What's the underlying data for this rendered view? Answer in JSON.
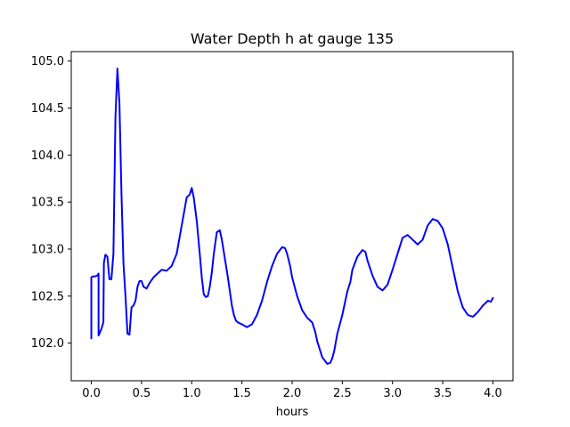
{
  "chart_data": {
    "type": "line",
    "title": "Water Depth h at gauge 135",
    "xlabel": "hours",
    "ylabel": "",
    "xlim": [
      -0.2,
      4.2
    ],
    "ylim": [
      101.6,
      105.1
    ],
    "grid": false,
    "legend": "none",
    "x_ticks": [
      {
        "value": 0.0,
        "label": "0.0"
      },
      {
        "value": 0.5,
        "label": "0.5"
      },
      {
        "value": 1.0,
        "label": "1.0"
      },
      {
        "value": 1.5,
        "label": "1.5"
      },
      {
        "value": 2.0,
        "label": "2.0"
      },
      {
        "value": 2.5,
        "label": "2.5"
      },
      {
        "value": 3.0,
        "label": "3.0"
      },
      {
        "value": 3.5,
        "label": "3.5"
      },
      {
        "value": 4.0,
        "label": "4.0"
      }
    ],
    "y_ticks": [
      {
        "value": 102.0,
        "label": "102.0"
      },
      {
        "value": 102.5,
        "label": "102.5"
      },
      {
        "value": 103.0,
        "label": "103.0"
      },
      {
        "value": 103.5,
        "label": "103.5"
      },
      {
        "value": 104.0,
        "label": "104.0"
      },
      {
        "value": 104.5,
        "label": "104.5"
      },
      {
        "value": 105.0,
        "label": "105.0"
      }
    ],
    "series": [
      {
        "color": "#0000ff",
        "x": [
          0.0,
          0.0,
          0.02,
          0.04,
          0.06,
          0.072,
          0.072,
          0.1,
          0.12,
          0.125,
          0.14,
          0.16,
          0.18,
          0.2,
          0.22,
          0.24,
          0.26,
          0.28,
          0.3,
          0.32,
          0.34,
          0.36,
          0.38,
          0.4,
          0.42,
          0.44,
          0.46,
          0.48,
          0.5,
          0.52,
          0.55,
          0.58,
          0.62,
          0.65,
          0.68,
          0.7,
          0.75,
          0.8,
          0.85,
          0.9,
          0.95,
          0.98,
          1.0,
          1.02,
          1.05,
          1.08,
          1.1,
          1.12,
          1.14,
          1.16,
          1.18,
          1.2,
          1.22,
          1.25,
          1.28,
          1.3,
          1.33,
          1.36,
          1.38,
          1.4,
          1.42,
          1.44,
          1.46,
          1.5,
          1.55,
          1.6,
          1.65,
          1.7,
          1.75,
          1.8,
          1.85,
          1.9,
          1.93,
          1.95,
          1.98,
          2.0,
          2.05,
          2.1,
          2.15,
          2.2,
          2.23,
          2.25,
          2.3,
          2.35,
          2.38,
          2.4,
          2.42,
          2.45,
          2.5,
          2.55,
          2.58,
          2.6,
          2.65,
          2.7,
          2.73,
          2.75,
          2.8,
          2.85,
          2.9,
          2.95,
          3.0,
          3.05,
          3.1,
          3.15,
          3.2,
          3.25,
          3.3,
          3.35,
          3.4,
          3.45,
          3.5,
          3.55,
          3.6,
          3.65,
          3.7,
          3.75,
          3.8,
          3.85,
          3.9,
          3.93,
          3.95,
          3.98,
          4.0
        ],
        "y": [
          102.05,
          102.7,
          102.71,
          102.71,
          102.72,
          102.74,
          102.08,
          102.15,
          102.22,
          102.85,
          102.94,
          102.92,
          102.68,
          102.68,
          102.95,
          104.4,
          104.92,
          104.55,
          103.6,
          102.85,
          102.5,
          102.1,
          102.09,
          102.38,
          102.4,
          102.45,
          102.6,
          102.66,
          102.66,
          102.6,
          102.58,
          102.64,
          102.7,
          102.73,
          102.76,
          102.78,
          102.77,
          102.82,
          102.95,
          103.25,
          103.55,
          103.58,
          103.65,
          103.55,
          103.3,
          102.95,
          102.7,
          102.52,
          102.49,
          102.5,
          102.6,
          102.75,
          102.95,
          103.18,
          103.2,
          103.1,
          102.9,
          102.7,
          102.55,
          102.4,
          102.3,
          102.24,
          102.22,
          102.2,
          102.17,
          102.2,
          102.3,
          102.45,
          102.65,
          102.82,
          102.95,
          103.02,
          103.01,
          102.95,
          102.82,
          102.7,
          102.5,
          102.35,
          102.27,
          102.22,
          102.12,
          102.02,
          101.85,
          101.78,
          101.79,
          101.84,
          101.92,
          102.1,
          102.3,
          102.55,
          102.65,
          102.78,
          102.92,
          102.99,
          102.97,
          102.88,
          102.72,
          102.6,
          102.56,
          102.62,
          102.78,
          102.95,
          103.12,
          103.15,
          103.1,
          103.05,
          103.1,
          103.25,
          103.32,
          103.3,
          103.22,
          103.05,
          102.8,
          102.55,
          102.38,
          102.3,
          102.28,
          102.33,
          102.4,
          102.43,
          102.45,
          102.44,
          102.48
        ]
      }
    ]
  }
}
